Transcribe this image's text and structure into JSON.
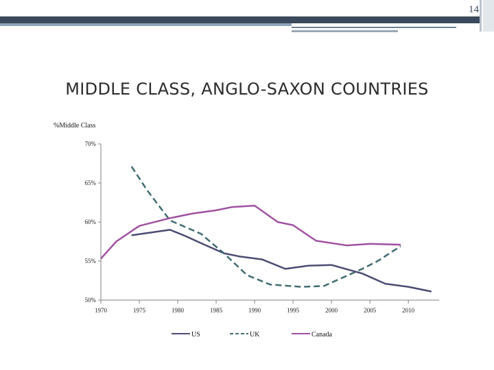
{
  "slide": {
    "number": "14",
    "title": "MIDDLE CLASS, ANGLO-SAXON COUNTRIES"
  },
  "chart_data": {
    "type": "line",
    "title": "MIDDLE CLASS, ANGLO-SAXON COUNTRIES",
    "ylabel": "%Middle Class",
    "xlabel": "",
    "x_ticks": [
      "1970",
      "1975",
      "1980",
      "1985",
      "1990",
      "1995",
      "2000",
      "2005",
      "2010"
    ],
    "y_ticks": [
      {
        "value": 50,
        "label": "50%"
      },
      {
        "value": 55,
        "label": "55%"
      },
      {
        "value": 60,
        "label": "60%"
      },
      {
        "value": 65,
        "label": "65%"
      },
      {
        "value": 70,
        "label": "70%"
      }
    ],
    "xlim": [
      1970,
      2014
    ],
    "ylim": [
      50,
      70
    ],
    "grid": false,
    "legend_position": "bottom",
    "series": [
      {
        "name": "US",
        "color": "#4a4a72",
        "style": "solid",
        "points": [
          [
            1974,
            58.3
          ],
          [
            1979,
            59.0
          ],
          [
            1981,
            58.2
          ],
          [
            1983,
            57.3
          ],
          [
            1986,
            56.0
          ],
          [
            1988,
            55.6
          ],
          [
            1991,
            55.2
          ],
          [
            1994,
            54.0
          ],
          [
            1997,
            54.4
          ],
          [
            2000,
            54.5
          ],
          [
            2004,
            53.4
          ],
          [
            2007,
            52.1
          ],
          [
            2010,
            51.7
          ],
          [
            2013,
            51.1
          ]
        ]
      },
      {
        "name": "UK",
        "color": "#3e6b70",
        "style": "dashed",
        "points": [
          [
            1974,
            67.1
          ],
          [
            1976,
            64.1
          ],
          [
            1979,
            60.2
          ],
          [
            1983,
            58.5
          ],
          [
            1986,
            56.0
          ],
          [
            1989,
            53.2
          ],
          [
            1992,
            52.0
          ],
          [
            1996,
            51.7
          ],
          [
            1999,
            51.8
          ],
          [
            2004,
            54.0
          ],
          [
            2006,
            55.0
          ],
          [
            2009,
            56.9
          ]
        ]
      },
      {
        "name": "Canada",
        "color": "#a050a0",
        "style": "solid",
        "points": [
          [
            1970,
            55.3
          ],
          [
            1972,
            57.5
          ],
          [
            1975,
            59.5
          ],
          [
            1979,
            60.5
          ],
          [
            1982,
            61.1
          ],
          [
            1985,
            61.5
          ],
          [
            1987,
            61.9
          ],
          [
            1990,
            62.1
          ],
          [
            1993,
            60.0
          ],
          [
            1995,
            59.6
          ],
          [
            1998,
            57.6
          ],
          [
            2002,
            57.0
          ],
          [
            2005,
            57.2
          ],
          [
            2009,
            57.1
          ]
        ]
      }
    ]
  }
}
